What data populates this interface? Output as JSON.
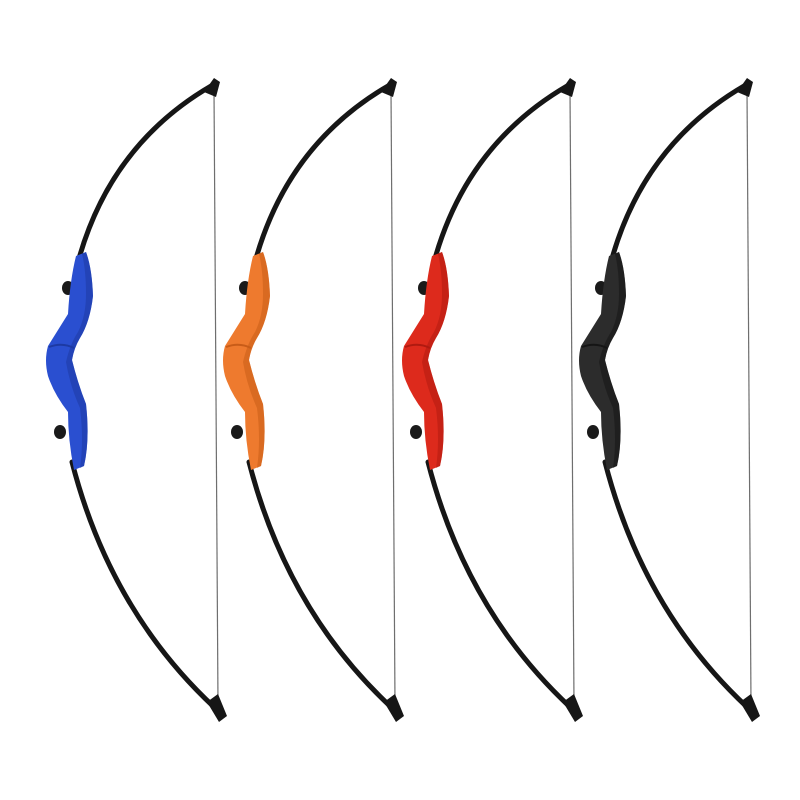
{
  "background_color": "#ffffff",
  "limb_color": "#161616",
  "string_color": "#6e6e6e",
  "bows": [
    {
      "name": "blue",
      "riser_color": "#2a4fd0",
      "riser_shade": "#1d3aa3"
    },
    {
      "name": "orange",
      "riser_color": "#ee7a2e",
      "riser_shade": "#c85c18"
    },
    {
      "name": "red",
      "riser_color": "#dd2a1c",
      "riser_shade": "#b01a10"
    },
    {
      "name": "black",
      "riser_color": "#2c2c2c",
      "riser_shade": "#151515"
    }
  ]
}
